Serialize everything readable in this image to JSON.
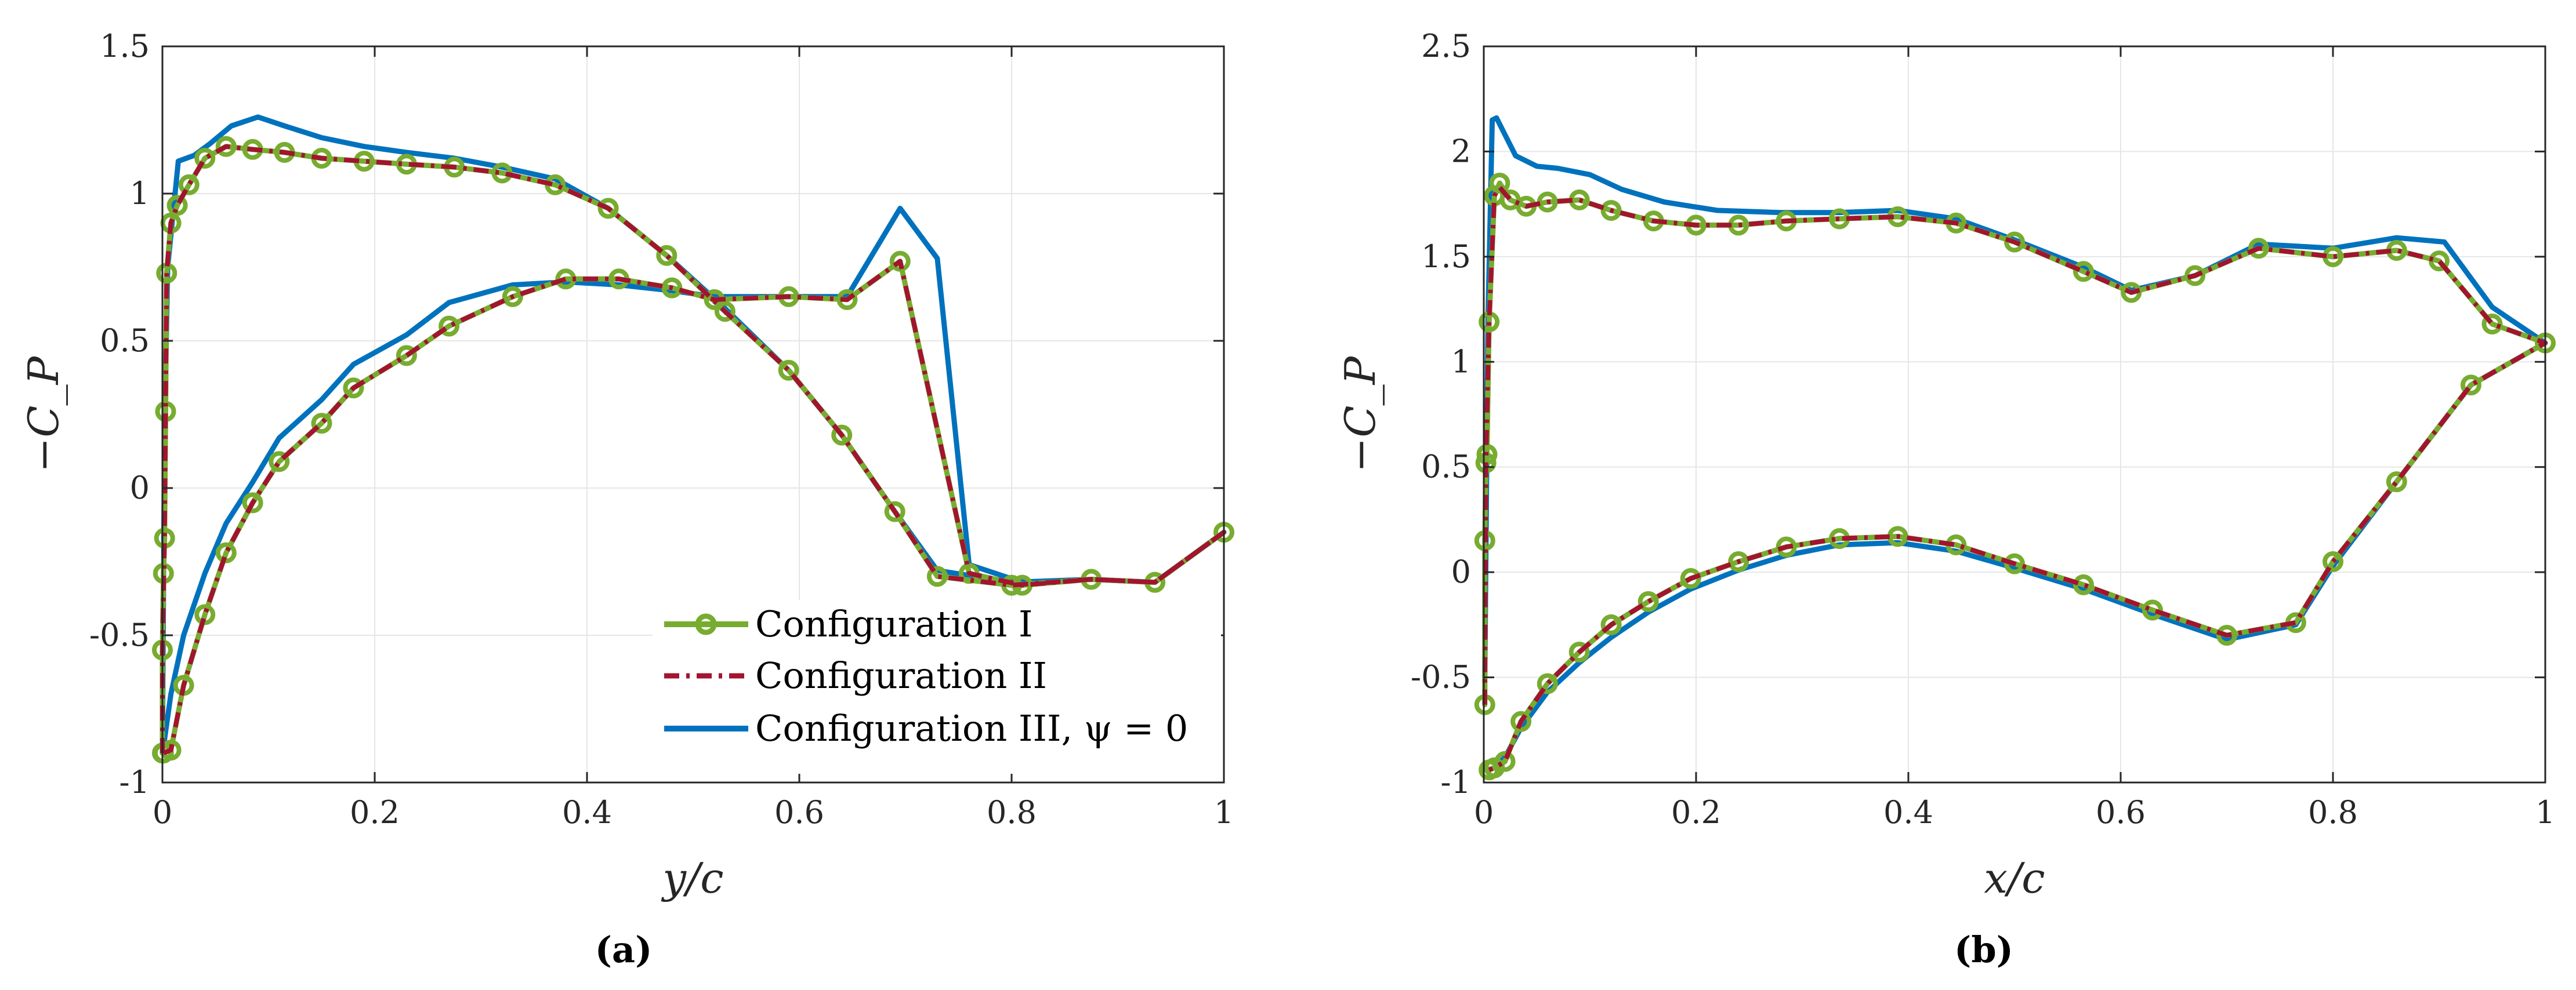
{
  "legend": {
    "items": [
      {
        "label": "Configuration I",
        "color": "#77AC30",
        "style": "line-circle"
      },
      {
        "label": "Configuration II",
        "color": "#A2142F",
        "style": "dash-dot"
      },
      {
        "label": "Configuration III, ψ = 0",
        "color": "#0072BD",
        "style": "solid"
      }
    ]
  },
  "chart_data": [
    {
      "type": "line",
      "caption": "(a)",
      "xlabel": "y/c",
      "ylabel": "−C_P",
      "xlim": [
        0,
        1
      ],
      "ylim": [
        -1,
        1.5
      ],
      "xticks": [
        0,
        0.2,
        0.4,
        0.6,
        0.8,
        1
      ],
      "xticklabels": [
        "0",
        "0.2",
        "0.4",
        "0.6",
        "0.8",
        "1"
      ],
      "yticks": [
        -1,
        -0.5,
        0,
        0.5,
        1,
        1.5
      ],
      "yticklabels": [
        "-1",
        "-0.5",
        "0",
        "0.5",
        "1",
        "1.5"
      ],
      "grid": true,
      "legend_position": "bottom-right",
      "series": [
        {
          "name": "Configuration I",
          "color": "#77AC30",
          "style": "line-circle",
          "x": [
            0.0,
            0.0,
            0.001,
            0.002,
            0.003,
            0.004,
            0.008,
            0.014,
            0.025,
            0.04,
            0.06,
            0.085,
            0.115,
            0.15,
            0.19,
            0.23,
            0.275,
            0.32,
            0.37,
            0.42,
            0.475,
            0.53,
            0.59,
            0.64,
            0.69,
            0.73,
            0.8,
            0.875,
            0.935,
            1.0,
            0.935,
            0.875,
            0.81,
            0.76,
            0.695,
            0.645,
            0.59,
            0.52,
            0.48,
            0.43,
            0.38,
            0.33,
            0.27,
            0.23,
            0.18,
            0.15,
            0.11,
            0.085,
            0.06,
            0.04,
            0.02,
            0.008,
            0.001
          ],
          "y": [
            -0.9,
            -0.55,
            -0.29,
            -0.17,
            0.26,
            0.73,
            0.9,
            0.96,
            1.03,
            1.12,
            1.16,
            1.15,
            1.14,
            1.12,
            1.11,
            1.1,
            1.09,
            1.07,
            1.03,
            0.95,
            0.79,
            0.6,
            0.4,
            0.18,
            -0.08,
            -0.3,
            -0.33,
            -0.31,
            -0.32,
            -0.15,
            -0.32,
            -0.31,
            -0.33,
            -0.29,
            0.77,
            0.64,
            0.65,
            0.64,
            0.68,
            0.71,
            0.71,
            0.65,
            0.55,
            0.45,
            0.34,
            0.22,
            0.09,
            -0.05,
            -0.22,
            -0.43,
            -0.67,
            -0.89,
            -0.9
          ]
        },
        {
          "name": "Configuration II",
          "color": "#A2142F",
          "style": "dash-dot",
          "x": [
            0.0,
            0.0,
            0.002,
            0.004,
            0.008,
            0.014,
            0.025,
            0.04,
            0.06,
            0.085,
            0.115,
            0.15,
            0.19,
            0.23,
            0.275,
            0.32,
            0.37,
            0.42,
            0.475,
            0.53,
            0.59,
            0.64,
            0.69,
            0.73,
            0.8,
            0.875,
            0.935,
            1.0,
            0.935,
            0.875,
            0.81,
            0.76,
            0.695,
            0.645,
            0.59,
            0.52,
            0.48,
            0.43,
            0.38,
            0.33,
            0.27,
            0.23,
            0.18,
            0.15,
            0.11,
            0.085,
            0.06,
            0.04,
            0.02,
            0.008,
            0.001
          ],
          "y": [
            -0.9,
            -0.55,
            -0.17,
            0.73,
            0.9,
            0.96,
            1.03,
            1.12,
            1.16,
            1.15,
            1.14,
            1.12,
            1.11,
            1.1,
            1.09,
            1.07,
            1.03,
            0.95,
            0.79,
            0.6,
            0.4,
            0.18,
            -0.08,
            -0.3,
            -0.33,
            -0.31,
            -0.32,
            -0.15,
            -0.32,
            -0.31,
            -0.33,
            -0.29,
            0.77,
            0.64,
            0.65,
            0.64,
            0.68,
            0.71,
            0.71,
            0.65,
            0.55,
            0.45,
            0.34,
            0.22,
            0.09,
            -0.05,
            -0.22,
            -0.43,
            -0.67,
            -0.89,
            -0.9
          ]
        },
        {
          "name": "Configuration III, ψ = 0",
          "color": "#0072BD",
          "style": "solid",
          "x": [
            0.0,
            0.002,
            0.005,
            0.015,
            0.03,
            0.045,
            0.065,
            0.09,
            0.115,
            0.15,
            0.19,
            0.23,
            0.275,
            0.32,
            0.37,
            0.42,
            0.475,
            0.53,
            0.59,
            0.64,
            0.69,
            0.73,
            0.8,
            0.875,
            0.935,
            1.0,
            0.935,
            0.875,
            0.81,
            0.76,
            0.73,
            0.695,
            0.645,
            0.59,
            0.52,
            0.48,
            0.43,
            0.38,
            0.33,
            0.27,
            0.23,
            0.18,
            0.15,
            0.11,
            0.085,
            0.06,
            0.04,
            0.02,
            0.008,
            0.001
          ],
          "y": [
            -0.9,
            0.2,
            0.75,
            1.11,
            1.13,
            1.17,
            1.23,
            1.26,
            1.23,
            1.19,
            1.16,
            1.14,
            1.12,
            1.09,
            1.05,
            0.95,
            0.79,
            0.61,
            0.4,
            0.18,
            -0.08,
            -0.28,
            -0.32,
            -0.31,
            -0.32,
            -0.15,
            -0.32,
            -0.31,
            -0.32,
            -0.26,
            0.78,
            0.95,
            0.65,
            0.65,
            0.65,
            0.67,
            0.69,
            0.7,
            0.69,
            0.63,
            0.52,
            0.42,
            0.3,
            0.17,
            0.02,
            -0.12,
            -0.29,
            -0.5,
            -0.7,
            -0.88
          ]
        }
      ]
    },
    {
      "type": "line",
      "caption": "(b)",
      "xlabel": "x/c",
      "ylabel": "−C_P",
      "xlim": [
        0,
        1
      ],
      "ylim": [
        -1,
        2.5
      ],
      "xticks": [
        0,
        0.2,
        0.4,
        0.6,
        0.8,
        1
      ],
      "xticklabels": [
        "0",
        "0.2",
        "0.4",
        "0.6",
        "0.8",
        "1"
      ],
      "yticks": [
        -1,
        -0.5,
        0,
        0.5,
        1,
        1.5,
        2,
        2.5
      ],
      "yticklabels": [
        "-1",
        "-0.5",
        "0",
        "0.5",
        "1",
        "1.5",
        "2",
        "2.5"
      ],
      "grid": true,
      "series": [
        {
          "name": "Configuration I",
          "color": "#77AC30",
          "style": "line-circle",
          "x": [
            0.001,
            0.001,
            0.002,
            0.003,
            0.005,
            0.01,
            0.015,
            0.025,
            0.04,
            0.06,
            0.09,
            0.12,
            0.16,
            0.2,
            0.24,
            0.285,
            0.335,
            0.39,
            0.445,
            0.5,
            0.565,
            0.61,
            0.67,
            0.73,
            0.8,
            0.86,
            0.9,
            0.95,
            1.0,
            0.93,
            0.86,
            0.8,
            0.765,
            0.7,
            0.63,
            0.565,
            0.5,
            0.445,
            0.39,
            0.335,
            0.285,
            0.24,
            0.195,
            0.155,
            0.12,
            0.09,
            0.06,
            0.035,
            0.02,
            0.01,
            0.005
          ],
          "y": [
            -0.63,
            0.15,
            0.52,
            0.56,
            1.19,
            1.79,
            1.85,
            1.77,
            1.74,
            1.76,
            1.77,
            1.72,
            1.67,
            1.65,
            1.65,
            1.67,
            1.68,
            1.69,
            1.66,
            1.57,
            1.43,
            1.33,
            1.41,
            1.54,
            1.5,
            1.53,
            1.48,
            1.18,
            1.09,
            0.89,
            0.43,
            0.05,
            -0.24,
            -0.3,
            -0.18,
            -0.06,
            0.04,
            0.13,
            0.17,
            0.16,
            0.12,
            0.05,
            -0.03,
            -0.14,
            -0.25,
            -0.38,
            -0.53,
            -0.71,
            -0.9,
            -0.93,
            -0.94
          ]
        },
        {
          "name": "Configuration II",
          "color": "#A2142F",
          "style": "dash-dot",
          "x": [
            0.001,
            0.002,
            0.005,
            0.01,
            0.015,
            0.025,
            0.04,
            0.06,
            0.09,
            0.12,
            0.16,
            0.2,
            0.24,
            0.285,
            0.335,
            0.39,
            0.445,
            0.5,
            0.565,
            0.61,
            0.67,
            0.73,
            0.8,
            0.86,
            0.9,
            0.95,
            1.0,
            0.93,
            0.86,
            0.8,
            0.765,
            0.7,
            0.63,
            0.565,
            0.5,
            0.445,
            0.39,
            0.335,
            0.285,
            0.24,
            0.195,
            0.155,
            0.12,
            0.09,
            0.06,
            0.035,
            0.02,
            0.01,
            0.005
          ],
          "y": [
            -0.63,
            0.52,
            1.19,
            1.79,
            1.83,
            1.77,
            1.74,
            1.76,
            1.77,
            1.72,
            1.67,
            1.65,
            1.65,
            1.67,
            1.68,
            1.69,
            1.66,
            1.57,
            1.43,
            1.33,
            1.41,
            1.54,
            1.5,
            1.53,
            1.48,
            1.18,
            1.09,
            0.89,
            0.43,
            0.05,
            -0.24,
            -0.3,
            -0.18,
            -0.06,
            0.04,
            0.13,
            0.17,
            0.16,
            0.12,
            0.05,
            -0.03,
            -0.14,
            -0.25,
            -0.38,
            -0.53,
            -0.71,
            -0.9,
            -0.93,
            -0.94
          ]
        },
        {
          "name": "Configuration III, ψ = 0",
          "color": "#0072BD",
          "style": "solid",
          "x": [
            0.001,
            0.004,
            0.008,
            0.012,
            0.018,
            0.03,
            0.05,
            0.07,
            0.1,
            0.13,
            0.17,
            0.22,
            0.28,
            0.335,
            0.39,
            0.445,
            0.5,
            0.565,
            0.61,
            0.67,
            0.73,
            0.8,
            0.86,
            0.905,
            0.95,
            1.0,
            0.93,
            0.86,
            0.8,
            0.765,
            0.7,
            0.63,
            0.565,
            0.5,
            0.445,
            0.39,
            0.335,
            0.285,
            0.24,
            0.195,
            0.155,
            0.12,
            0.09,
            0.06,
            0.035,
            0.02,
            0.01,
            0.005
          ],
          "y": [
            -0.5,
            1.2,
            2.15,
            2.16,
            2.1,
            1.98,
            1.93,
            1.92,
            1.89,
            1.82,
            1.76,
            1.72,
            1.71,
            1.71,
            1.72,
            1.68,
            1.58,
            1.45,
            1.34,
            1.41,
            1.56,
            1.54,
            1.59,
            1.57,
            1.26,
            1.09,
            0.89,
            0.43,
            0.03,
            -0.25,
            -0.32,
            -0.2,
            -0.08,
            0.02,
            0.1,
            0.14,
            0.13,
            0.08,
            0.01,
            -0.08,
            -0.19,
            -0.31,
            -0.43,
            -0.57,
            -0.74,
            -0.88,
            -0.93,
            -0.94
          ]
        }
      ]
    }
  ]
}
